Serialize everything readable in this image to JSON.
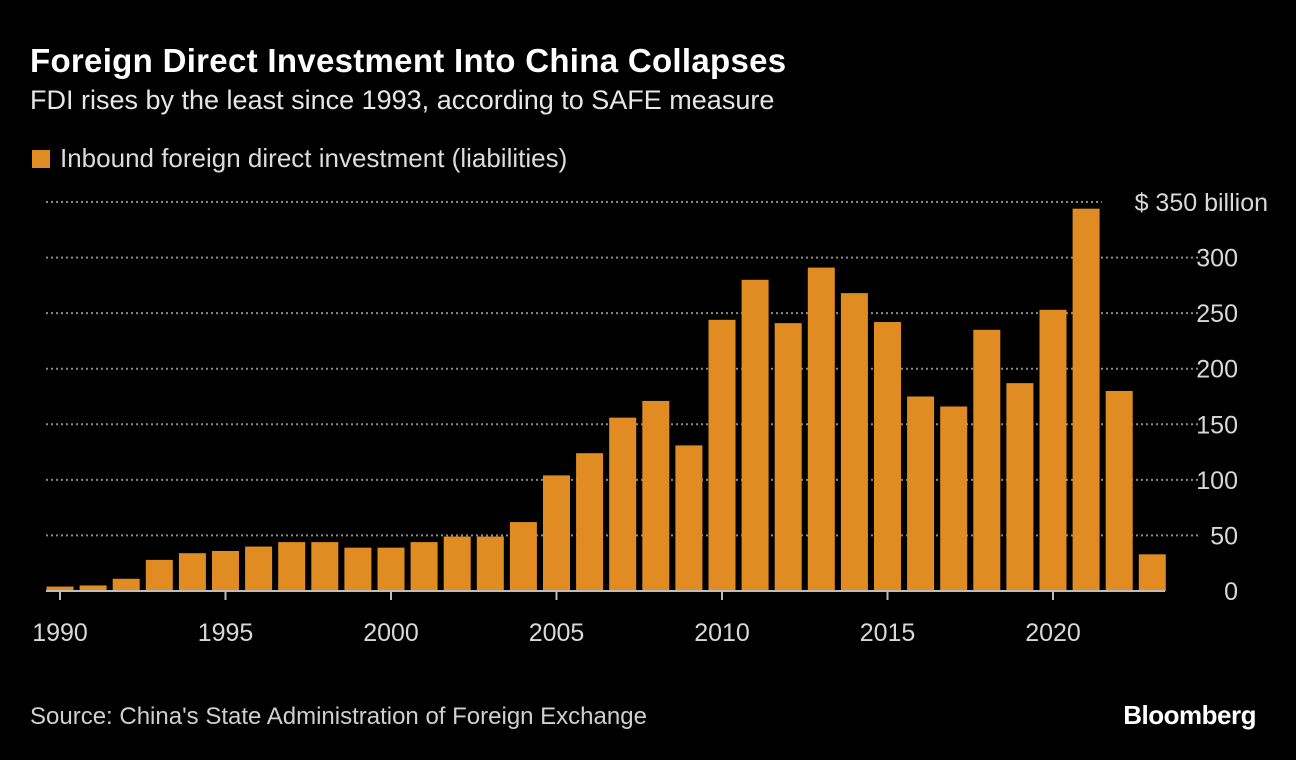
{
  "chart_data": {
    "type": "bar",
    "title": "Foreign Direct Investment Into China Collapses",
    "subtitle": "FDI rises by the least since 1993, according to SAFE measure",
    "source": "Source: China's State Administration of Foreign Exchange",
    "brand": "Bloomberg",
    "series": [
      {
        "name": "Inbound foreign direct investment (liabilities)",
        "color": "#e08c23",
        "values": [
          4,
          5,
          11,
          28,
          34,
          36,
          40,
          44,
          44,
          39,
          39,
          44,
          49,
          49,
          62,
          104,
          124,
          156,
          171,
          131,
          244,
          280,
          241,
          291,
          268,
          242,
          175,
          166,
          235,
          187,
          253,
          344,
          180,
          33
        ]
      }
    ],
    "categories": [
      1990,
      1991,
      1992,
      1993,
      1994,
      1995,
      1996,
      1997,
      1998,
      1999,
      2000,
      2001,
      2002,
      2003,
      2004,
      2005,
      2006,
      2007,
      2008,
      2009,
      2010,
      2011,
      2012,
      2013,
      2014,
      2015,
      2016,
      2017,
      2018,
      2019,
      2020,
      2021,
      2022,
      2023
    ],
    "x_ticks": [
      "1990",
      "1995",
      "2000",
      "2005",
      "2010",
      "2015",
      "2020"
    ],
    "y_ticks": [
      "0",
      "50",
      "100",
      "150",
      "200",
      "250",
      "300",
      "$ 350 billion"
    ],
    "ylim": [
      0,
      350
    ],
    "grid": true,
    "grid_color": "#8a8a8a",
    "legend_position": "top-left",
    "background": "#000000"
  }
}
